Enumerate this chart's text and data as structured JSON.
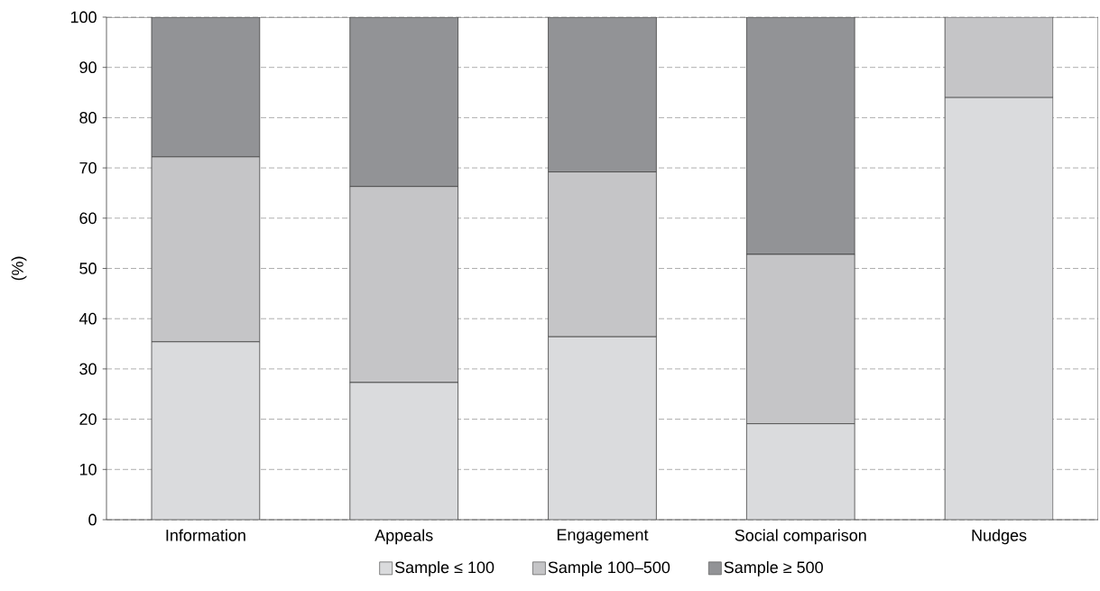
{
  "chart_data": {
    "type": "bar",
    "stacked": true,
    "ylabel": "(%)",
    "categories": [
      "Information",
      "Appeals",
      "Engagement",
      "Social comparison",
      "Nudges"
    ],
    "series": [
      {
        "name": "Sample ≤ 100",
        "color": "#dadbdd",
        "values": [
          35.4,
          27.3,
          36.4,
          19.1,
          84.0
        ]
      },
      {
        "name": "Sample 100–500",
        "color": "#c5c5c7",
        "values": [
          36.8,
          39.0,
          32.8,
          33.7,
          16.0
        ]
      },
      {
        "name": "Sample ≥ 500",
        "color": "#929396",
        "values": [
          27.8,
          33.7,
          30.8,
          47.2,
          null
        ]
      }
    ],
    "ylim": [
      0,
      100
    ],
    "yticks": [
      0,
      10,
      20,
      30,
      40,
      50,
      60,
      70,
      80,
      90,
      100
    ],
    "grid": "y",
    "legend": "bottom"
  }
}
